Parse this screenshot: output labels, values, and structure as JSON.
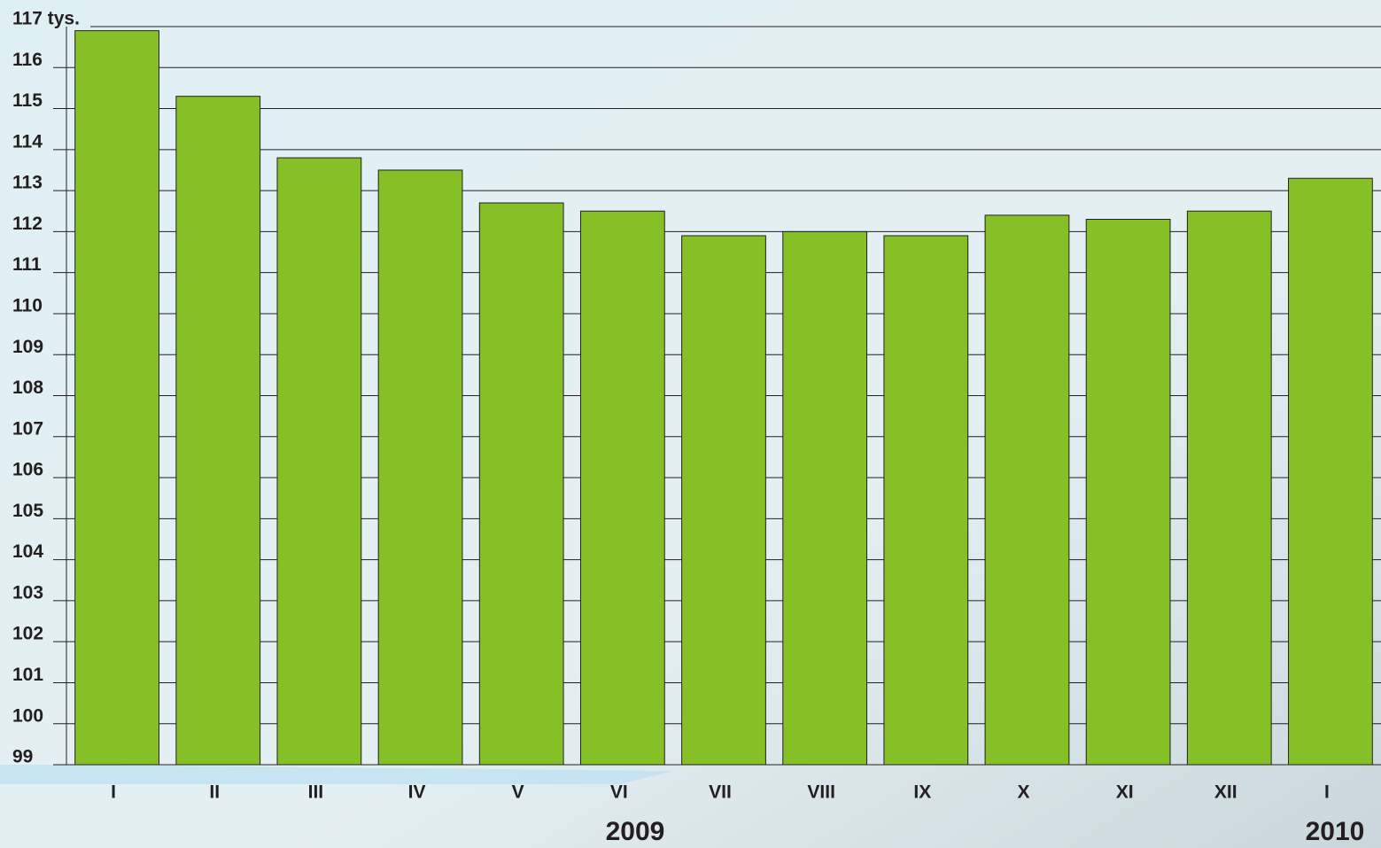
{
  "chart_data": {
    "type": "bar",
    "categories": [
      "I",
      "II",
      "III",
      "IV",
      "V",
      "VI",
      "VII",
      "VIII",
      "IX",
      "X",
      "XI",
      "XII",
      "I"
    ],
    "values": [
      116.9,
      115.3,
      113.8,
      113.5,
      112.7,
      112.5,
      111.9,
      112.0,
      111.9,
      112.4,
      112.3,
      112.5,
      113.3
    ],
    "color": "#85c126",
    "ylim": [
      99,
      117
    ],
    "yticks": [
      99,
      100,
      101,
      102,
      103,
      104,
      105,
      106,
      107,
      108,
      109,
      110,
      111,
      112,
      113,
      114,
      115,
      116,
      {
        "value": 117,
        "label": "117 tys."
      }
    ],
    "grid": true,
    "annotations": [
      "2009",
      "2010"
    ]
  }
}
